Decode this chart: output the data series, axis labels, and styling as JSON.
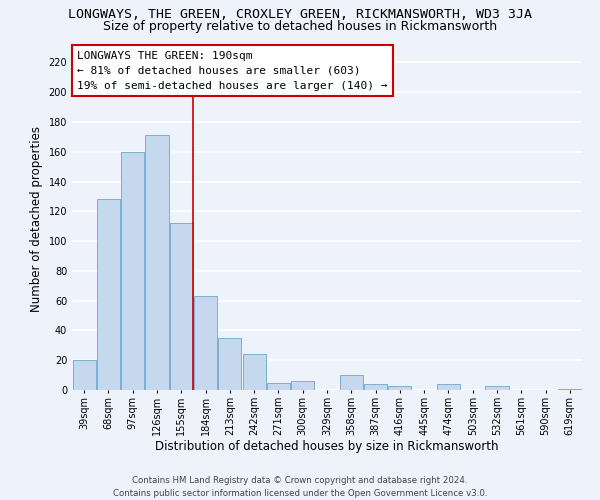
{
  "title": "LONGWAYS, THE GREEN, CROXLEY GREEN, RICKMANSWORTH, WD3 3JA",
  "subtitle": "Size of property relative to detached houses in Rickmansworth",
  "xlabel": "Distribution of detached houses by size in Rickmansworth",
  "ylabel": "Number of detached properties",
  "bin_labels": [
    "39sqm",
    "68sqm",
    "97sqm",
    "126sqm",
    "155sqm",
    "184sqm",
    "213sqm",
    "242sqm",
    "271sqm",
    "300sqm",
    "329sqm",
    "358sqm",
    "387sqm",
    "416sqm",
    "445sqm",
    "474sqm",
    "503sqm",
    "532sqm",
    "561sqm",
    "590sqm",
    "619sqm"
  ],
  "bar_values": [
    20,
    128,
    160,
    171,
    112,
    63,
    35,
    24,
    5,
    6,
    0,
    10,
    4,
    3,
    0,
    4,
    0,
    3,
    0,
    0,
    1
  ],
  "bar_color": "#c5d8ee",
  "bar_edge_color": "#7bafd4",
  "ylim": [
    0,
    230
  ],
  "yticks": [
    0,
    20,
    40,
    60,
    80,
    100,
    120,
    140,
    160,
    180,
    200,
    220
  ],
  "marker_color": "#cc0000",
  "annotation_title": "LONGWAYS THE GREEN: 190sqm",
  "annotation_line1": "← 81% of detached houses are smaller (603)",
  "annotation_line2": "19% of semi-detached houses are larger (140) →",
  "annotation_box_color": "#ffffff",
  "annotation_box_edge": "#cc0000",
  "footer_line1": "Contains HM Land Registry data © Crown copyright and database right 2024.",
  "footer_line2": "Contains public sector information licensed under the Open Government Licence v3.0.",
  "background_color": "#eef2fb",
  "grid_color": "#ffffff",
  "title_fontsize": 9.5,
  "subtitle_fontsize": 9,
  "axis_label_fontsize": 8.5,
  "tick_fontsize": 7,
  "annotation_fontsize": 8,
  "footer_fontsize": 6.2
}
